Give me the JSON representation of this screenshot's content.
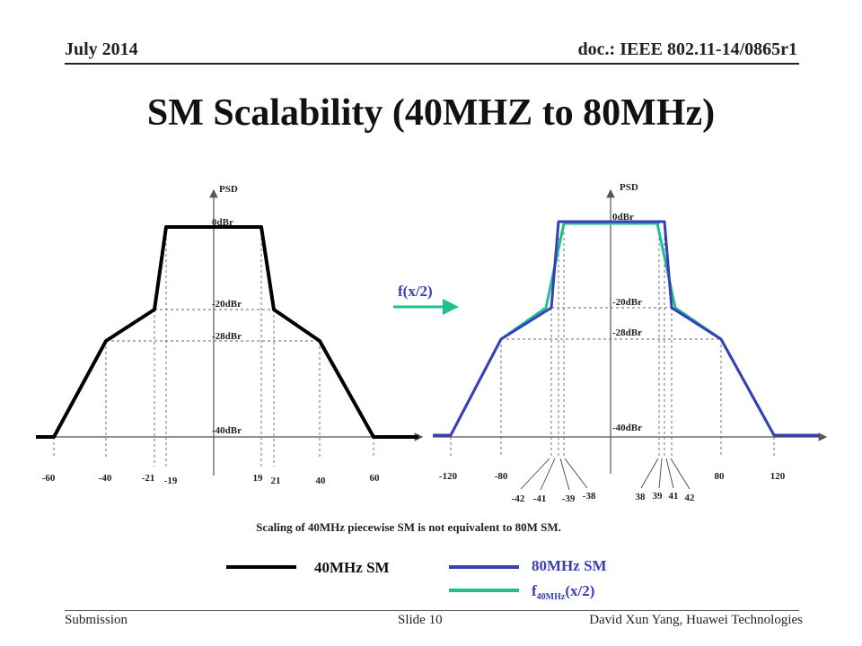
{
  "header": {
    "date": "July 2014",
    "doc": "doc.: IEEE 802.11-14/0865r1"
  },
  "title": "SM Scalability (40MHZ to 80MHz)",
  "left_plot": {
    "psd_label": "PSD",
    "levels": [
      "0dBr",
      "-20dBr",
      "-28dBr",
      "-40dBr"
    ],
    "freq_labels": [
      "-60",
      "-40",
      "-21",
      "-19",
      "19",
      "21",
      "40",
      "60"
    ]
  },
  "right_plot": {
    "psd_label": "PSD",
    "levels": [
      "0dBr",
      "-20dBr",
      "-28dBr",
      "-40dBr"
    ],
    "freq_labels": [
      "-120",
      "-80",
      "80",
      "120"
    ],
    "edge_labels": [
      "-42",
      "-41",
      "-39",
      "-38",
      "38",
      "39",
      "41",
      "42"
    ]
  },
  "transform_label": "f(x/2)",
  "caption": "Scaling of 40MHz piecewise SM is not equivalent to 80M SM.",
  "legend": {
    "sm40": "40MHz SM",
    "sm80": "80MHz SM",
    "scaled_main": "f",
    "scaled_sub": "40MHz",
    "scaled_arg": "(x/2)"
  },
  "colors": {
    "sm40": "#000000",
    "sm80": "#3a3db8",
    "scaled": "#1fbf92",
    "text_accent": "#3a3db8"
  },
  "footer": {
    "left": "Submission",
    "center": "Slide 10",
    "right": "David Xun Yang, Huawei Technologies"
  }
}
